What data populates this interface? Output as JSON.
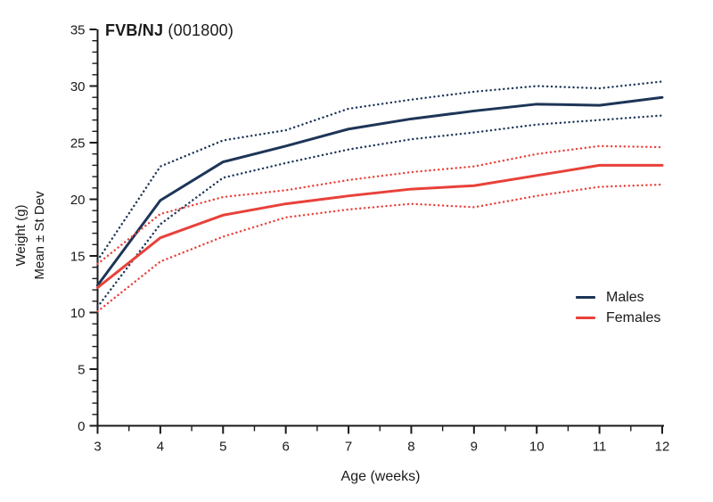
{
  "title": {
    "strain": "FVB/NJ",
    "stock": "(001800)"
  },
  "colors": {
    "males": "#1d3557",
    "females": "#e8413a",
    "axis": "#1a1a1a",
    "background": "#ffffff"
  },
  "legend": [
    {
      "label": "Males",
      "color_key": "males"
    },
    {
      "label": "Females",
      "color_key": "females"
    }
  ],
  "chart_data": {
    "type": "line",
    "title": "FVB/NJ (001800)",
    "xlabel": "Age (weeks)",
    "ylabel_line1": "Weight (g)",
    "ylabel_line2": "Mean ± St Dev",
    "x": [
      3,
      4,
      5,
      6,
      7,
      8,
      9,
      10,
      11,
      12
    ],
    "xlim": [
      3,
      12
    ],
    "ylim": [
      0,
      35
    ],
    "yticks": [
      0,
      5,
      10,
      15,
      20,
      25,
      30,
      35
    ],
    "x_minor_step": 0.5,
    "y_minor_step": 1,
    "grid": false,
    "legend_position": "right-center",
    "series": [
      {
        "name": "Males mean",
        "color_key": "males",
        "style": "solid",
        "values": [
          12.4,
          19.9,
          23.3,
          24.7,
          26.2,
          27.1,
          27.8,
          28.4,
          28.3,
          29.0
        ]
      },
      {
        "name": "Males mean + st dev",
        "color_key": "males",
        "style": "dotted",
        "values": [
          14.6,
          22.9,
          25.2,
          26.1,
          28.0,
          28.8,
          29.5,
          30.0,
          29.8,
          30.4
        ]
      },
      {
        "name": "Males mean - st dev",
        "color_key": "males",
        "style": "dotted",
        "values": [
          10.5,
          17.8,
          21.9,
          23.2,
          24.4,
          25.3,
          25.9,
          26.6,
          27.0,
          27.4
        ]
      },
      {
        "name": "Females mean",
        "color_key": "females",
        "style": "solid",
        "values": [
          12.2,
          16.6,
          18.6,
          19.6,
          20.3,
          20.9,
          21.2,
          22.1,
          23.0,
          23.0
        ]
      },
      {
        "name": "Females mean + st dev",
        "color_key": "females",
        "style": "dotted",
        "values": [
          14.3,
          18.7,
          20.2,
          20.8,
          21.7,
          22.4,
          22.9,
          24.0,
          24.7,
          24.6
        ]
      },
      {
        "name": "Females mean - st dev",
        "color_key": "females",
        "style": "dotted",
        "values": [
          10.1,
          14.5,
          16.7,
          18.4,
          19.1,
          19.6,
          19.3,
          20.3,
          21.1,
          21.3
        ]
      }
    ]
  }
}
